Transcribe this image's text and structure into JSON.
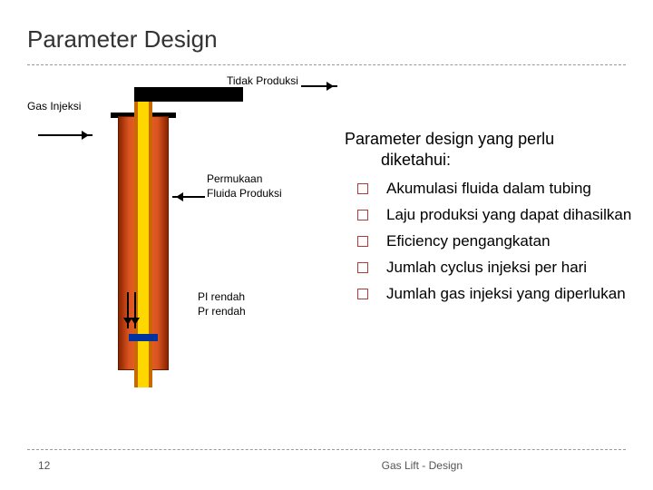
{
  "title": "Parameter Design",
  "labels": {
    "tidak_produksi": "Tidak Produksi",
    "gas_injeksi": "Gas Injeksi",
    "permukaan": "Permukaan Fluida Produksi",
    "pi_pr": "PI rendah\nPr rendah"
  },
  "right": {
    "heading_line1": "Parameter design yang perlu",
    "heading_line2": "diketahui:",
    "items": [
      "Akumulasi fluida dalam tubing",
      "Laju produksi yang dapat dihasilkan",
      "Eficiency pengangkatan",
      "Jumlah cyclus injeksi per hari",
      "Jumlah gas injeksi yang diperlukan"
    ]
  },
  "footer": {
    "page": "12",
    "text": "Gas Lift - Design"
  },
  "colors": {
    "casing_dark": "#8a2400",
    "casing_mid": "#d9531f",
    "casing_light": "#ef6a2b",
    "tubing_fill": "#ffd700",
    "tubing_border": "#c96a00",
    "plunger": "#0033a0",
    "bullet_border": "#b33a3a",
    "divider": "#999999",
    "text": "#000000"
  }
}
